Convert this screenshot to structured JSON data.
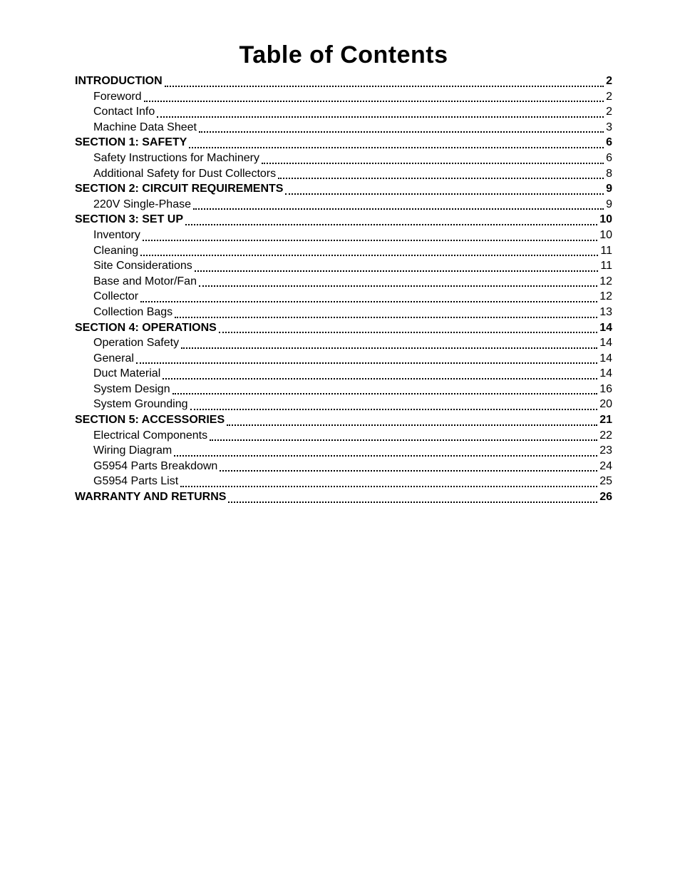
{
  "document": {
    "title": "Table of Contents",
    "title_fontsize": 34,
    "title_color": "#000000",
    "body_fontsize": 16,
    "body_color": "#000000",
    "background_color": "#ffffff"
  },
  "toc": {
    "entries": [
      {
        "level": 0,
        "label": "INTRODUCTION",
        "page": "2"
      },
      {
        "level": 1,
        "label": "Foreword",
        "page": "2"
      },
      {
        "level": 1,
        "label": "Contact Info",
        "page": "2"
      },
      {
        "level": 1,
        "label": "Machine Data Sheet",
        "page": "3"
      },
      {
        "level": 0,
        "label": "SECTION 1: SAFETY",
        "page": "6"
      },
      {
        "level": 1,
        "label": "Safety Instructions for Machinery",
        "page": "6"
      },
      {
        "level": 1,
        "label": "Additional Safety for Dust Collectors",
        "page": "8"
      },
      {
        "level": 0,
        "label": "SECTION 2: CIRCUIT REQUIREMENTS",
        "page": "9"
      },
      {
        "level": 1,
        "label": "220V Single-Phase",
        "page": "9"
      },
      {
        "level": 0,
        "label": "SECTION 3: SET UP",
        "page": "10"
      },
      {
        "level": 1,
        "label": "Inventory",
        "page": "10"
      },
      {
        "level": 1,
        "label": "Cleaning",
        "page": "11"
      },
      {
        "level": 1,
        "label": "Site Considerations",
        "page": "11"
      },
      {
        "level": 1,
        "label": "Base and Motor/Fan",
        "page": "12"
      },
      {
        "level": 1,
        "label": "Collector",
        "page": "12"
      },
      {
        "level": 1,
        "label": "Collection Bags",
        "page": "13"
      },
      {
        "level": 0,
        "label": "SECTION 4: OPERATIONS",
        "page": "14"
      },
      {
        "level": 1,
        "label": "Operation Safety",
        "page": "14"
      },
      {
        "level": 1,
        "label": "General",
        "page": "14"
      },
      {
        "level": 1,
        "label": "Duct Material",
        "page": "14"
      },
      {
        "level": 1,
        "label": "System Design",
        "page": "16"
      },
      {
        "level": 1,
        "label": "System Grounding",
        "page": "20"
      },
      {
        "level": 0,
        "label": "SECTION 5: ACCESSORIES",
        "page": "21"
      },
      {
        "level": 1,
        "label": "Electrical Components",
        "page": "22"
      },
      {
        "level": 1,
        "label": "Wiring Diagram",
        "page": "23"
      },
      {
        "level": 1,
        "label": "G5954 Parts Breakdown",
        "page": "24"
      },
      {
        "level": 1,
        "label": "G5954 Parts List",
        "page": "25"
      },
      {
        "level": 0,
        "label": "WARRANTY AND RETURNS",
        "page": "26"
      }
    ]
  }
}
